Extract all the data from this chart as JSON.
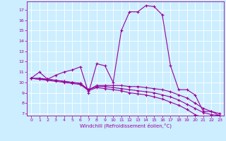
{
  "xlabel": "Windchill (Refroidissement éolien,°C)",
  "bg_color": "#cceeff",
  "line_color": "#990099",
  "grid_color": "#ffffff",
  "xlim": [
    -0.5,
    23.5
  ],
  "ylim": [
    6.8,
    17.8
  ],
  "xticks": [
    0,
    1,
    2,
    3,
    4,
    5,
    6,
    7,
    8,
    9,
    10,
    11,
    12,
    13,
    14,
    15,
    16,
    17,
    18,
    19,
    20,
    21,
    22,
    23
  ],
  "yticks": [
    7,
    8,
    9,
    10,
    11,
    12,
    13,
    14,
    15,
    16,
    17
  ],
  "line1_x": [
    0,
    1,
    2,
    3,
    4,
    5,
    6,
    7,
    8,
    9,
    10,
    11,
    12,
    13,
    14,
    15,
    16,
    17,
    18,
    19,
    20,
    21,
    22,
    23
  ],
  "line1_y": [
    10.4,
    11.0,
    10.3,
    10.7,
    11.0,
    11.2,
    11.5,
    9.0,
    11.8,
    11.6,
    10.0,
    15.0,
    16.8,
    16.8,
    17.4,
    17.3,
    16.5,
    11.6,
    9.3,
    9.3,
    8.8,
    7.2,
    7.2,
    6.8
  ],
  "line2_x": [
    0,
    1,
    2,
    3,
    4,
    5,
    6,
    7,
    8,
    9,
    10,
    11,
    12,
    13,
    14,
    15,
    16,
    17,
    18,
    19,
    20,
    21,
    22,
    23
  ],
  "line2_y": [
    10.4,
    10.4,
    10.3,
    10.2,
    10.1,
    10.0,
    9.9,
    9.3,
    9.7,
    9.7,
    9.7,
    9.7,
    9.6,
    9.6,
    9.5,
    9.4,
    9.3,
    9.1,
    8.8,
    8.5,
    8.0,
    7.5,
    7.2,
    7.0
  ],
  "line3_x": [
    0,
    1,
    2,
    3,
    4,
    5,
    6,
    7,
    8,
    9,
    10,
    11,
    12,
    13,
    14,
    15,
    16,
    17,
    18,
    19,
    20,
    21,
    22,
    23
  ],
  "line3_y": [
    10.4,
    10.3,
    10.3,
    10.2,
    10.1,
    10.0,
    9.9,
    9.3,
    9.6,
    9.6,
    9.5,
    9.4,
    9.3,
    9.2,
    9.1,
    9.0,
    8.8,
    8.6,
    8.3,
    7.9,
    7.5,
    7.1,
    6.9,
    6.8
  ],
  "line4_x": [
    0,
    1,
    2,
    3,
    4,
    5,
    6,
    7,
    8,
    9,
    10,
    11,
    12,
    13,
    14,
    15,
    16,
    17,
    18,
    19,
    20,
    21,
    22,
    23
  ],
  "line4_y": [
    10.4,
    10.3,
    10.2,
    10.1,
    10.0,
    9.9,
    9.8,
    9.2,
    9.5,
    9.4,
    9.3,
    9.2,
    9.0,
    8.9,
    8.8,
    8.6,
    8.4,
    8.1,
    7.8,
    7.4,
    6.9,
    6.6,
    6.5,
    6.4
  ]
}
